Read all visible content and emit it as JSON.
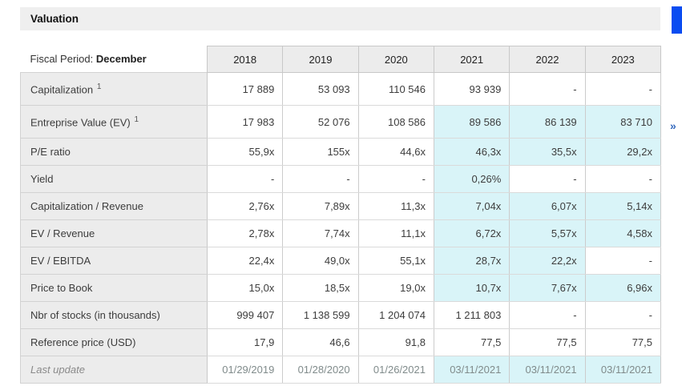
{
  "section": {
    "title": "Valuation"
  },
  "pagination": {
    "next_label": "»"
  },
  "colors": {
    "highlight": "#d9f4f8",
    "header_bg": "#ececec",
    "label_bg": "#ececec",
    "section_bar_bg": "#efefef",
    "blue_button": "#0a4cf1",
    "chevron_blue": "#3368bd"
  },
  "table": {
    "fiscal_period_label": "Fiscal Period:",
    "fiscal_period_value": "December",
    "years": [
      "2018",
      "2019",
      "2020",
      "2021",
      "2022",
      "2023"
    ],
    "rows": [
      {
        "label": "Capitalization",
        "sup": "1",
        "tall": true,
        "muted": false,
        "values": [
          "17 889",
          "53 093",
          "110 546",
          "93 939",
          "-",
          "-"
        ],
        "highlight": []
      },
      {
        "label": "Entreprise Value (EV)",
        "sup": "1",
        "tall": true,
        "muted": false,
        "values": [
          "17 983",
          "52 076",
          "108 586",
          "89 586",
          "86 139",
          "83 710"
        ],
        "highlight": [
          3,
          4,
          5
        ]
      },
      {
        "label": "P/E ratio",
        "sup": "",
        "tall": false,
        "muted": false,
        "values": [
          "55,9x",
          "155x",
          "44,6x",
          "46,3x",
          "35,5x",
          "29,2x"
        ],
        "highlight": [
          3,
          4,
          5
        ]
      },
      {
        "label": "Yield",
        "sup": "",
        "tall": false,
        "muted": false,
        "values": [
          "-",
          "-",
          "-",
          "0,26%",
          "-",
          "-"
        ],
        "highlight": [
          3
        ]
      },
      {
        "label": "Capitalization / Revenue",
        "sup": "",
        "tall": false,
        "muted": false,
        "values": [
          "2,76x",
          "7,89x",
          "11,3x",
          "7,04x",
          "6,07x",
          "5,14x"
        ],
        "highlight": [
          3,
          4,
          5
        ]
      },
      {
        "label": "EV / Revenue",
        "sup": "",
        "tall": false,
        "muted": false,
        "values": [
          "2,78x",
          "7,74x",
          "11,1x",
          "6,72x",
          "5,57x",
          "4,58x"
        ],
        "highlight": [
          3,
          4,
          5
        ]
      },
      {
        "label": "EV / EBITDA",
        "sup": "",
        "tall": false,
        "muted": false,
        "values": [
          "22,4x",
          "49,0x",
          "55,1x",
          "28,7x",
          "22,2x",
          "-"
        ],
        "highlight": [
          3,
          4
        ]
      },
      {
        "label": "Price to Book",
        "sup": "",
        "tall": false,
        "muted": false,
        "values": [
          "15,0x",
          "18,5x",
          "19,0x",
          "10,7x",
          "7,67x",
          "6,96x"
        ],
        "highlight": [
          3,
          4,
          5
        ]
      },
      {
        "label": "Nbr of stocks (in thousands)",
        "sup": "",
        "tall": false,
        "muted": false,
        "values": [
          "999 407",
          "1 138 599",
          "1 204 074",
          "1 211 803",
          "-",
          "-"
        ],
        "highlight": []
      },
      {
        "label": "Reference price (USD)",
        "sup": "",
        "tall": false,
        "muted": false,
        "values": [
          "17,9",
          "46,6",
          "91,8",
          "77,5",
          "77,5",
          "77,5"
        ],
        "highlight": []
      },
      {
        "label": "Last update",
        "sup": "",
        "tall": false,
        "muted": true,
        "values": [
          "01/29/2019",
          "01/28/2020",
          "01/26/2021",
          "03/11/2021",
          "03/11/2021",
          "03/11/2021"
        ],
        "highlight": [
          3,
          4,
          5
        ]
      }
    ]
  }
}
